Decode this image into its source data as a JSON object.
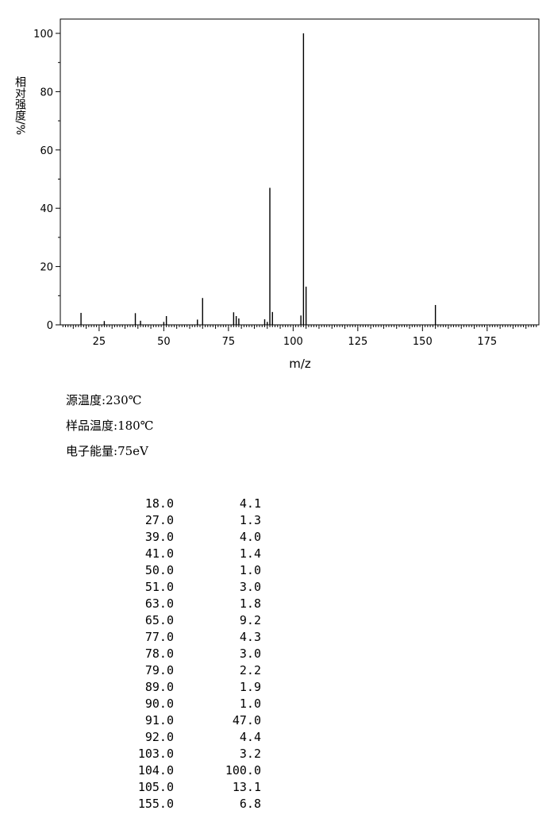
{
  "chart_data": {
    "type": "bar",
    "xlabel": "m/z",
    "ylabel": "相对强度/%",
    "xlim": [
      10,
      195
    ],
    "ylim": [
      0,
      100
    ],
    "xticks": [
      25,
      50,
      75,
      100,
      125,
      150,
      175
    ],
    "yticks": [
      0,
      20,
      40,
      60,
      80,
      100
    ],
    "grid": false,
    "x": [
      18.0,
      27.0,
      39.0,
      41.0,
      50.0,
      51.0,
      63.0,
      65.0,
      77.0,
      78.0,
      79.0,
      89.0,
      90.0,
      91.0,
      92.0,
      103.0,
      104.0,
      105.0,
      155.0
    ],
    "values": [
      4.1,
      1.3,
      4.0,
      1.4,
      1.0,
      3.0,
      1.8,
      9.2,
      4.3,
      3.0,
      2.2,
      1.9,
      1.0,
      47.0,
      4.4,
      3.2,
      100.0,
      13.1,
      6.8
    ],
    "color": "#000000"
  },
  "conditions": [
    {
      "label": "源温度",
      "value": "230℃"
    },
    {
      "label": "样品温度",
      "value": "180℃"
    },
    {
      "label": "电子能量",
      "value": "75eV"
    }
  ],
  "peak_table": [
    {
      "mz": "18.0",
      "intensity": "4.1"
    },
    {
      "mz": "27.0",
      "intensity": "1.3"
    },
    {
      "mz": "39.0",
      "intensity": "4.0"
    },
    {
      "mz": "41.0",
      "intensity": "1.4"
    },
    {
      "mz": "50.0",
      "intensity": "1.0"
    },
    {
      "mz": "51.0",
      "intensity": "3.0"
    },
    {
      "mz": "63.0",
      "intensity": "1.8"
    },
    {
      "mz": "65.0",
      "intensity": "9.2"
    },
    {
      "mz": "77.0",
      "intensity": "4.3"
    },
    {
      "mz": "78.0",
      "intensity": "3.0"
    },
    {
      "mz": "79.0",
      "intensity": "2.2"
    },
    {
      "mz": "89.0",
      "intensity": "1.9"
    },
    {
      "mz": "90.0",
      "intensity": "1.0"
    },
    {
      "mz": "91.0",
      "intensity": "47.0"
    },
    {
      "mz": "92.0",
      "intensity": "4.4"
    },
    {
      "mz": "103.0",
      "intensity": "3.2"
    },
    {
      "mz": "104.0",
      "intensity": "100.0"
    },
    {
      "mz": "105.0",
      "intensity": "13.1"
    },
    {
      "mz": "155.0",
      "intensity": "6.8"
    }
  ]
}
